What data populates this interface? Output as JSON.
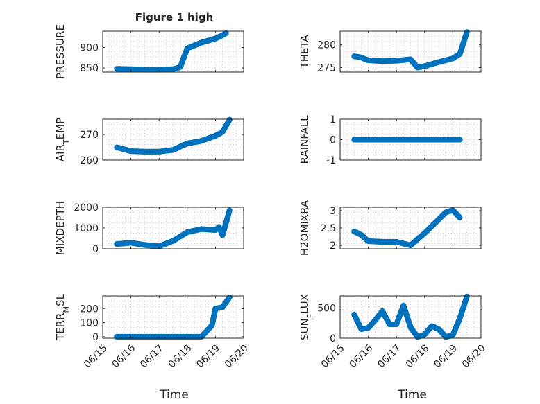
{
  "figure": {
    "title": "Figure 1 high",
    "marker_color": "#0072bd"
  },
  "chart_data": [
    {
      "type": "scatter",
      "ylabel": "PRESSURE",
      "ylim": [
        840,
        940
      ],
      "yticks": [
        850,
        900
      ],
      "xticks": [
        "06/15",
        "06/16",
        "06/17",
        "06/18",
        "06/19",
        "06/20"
      ],
      "xlim": [
        "06/15",
        "06/20"
      ],
      "x_points": [
        "06/15 12:00",
        "06/16 00:00",
        "06/16 12:00",
        "06/17 00:00",
        "06/17 12:00",
        "06/17 18:00",
        "06/18 00:00",
        "06/18 06:00",
        "06/18 12:00",
        "06/18 18:00",
        "06/19 00:00",
        "06/19 06:00",
        "06/19 09:00"
      ],
      "y_points": [
        848,
        847,
        846,
        846,
        847,
        852,
        898,
        905,
        912,
        917,
        922,
        930,
        935
      ],
      "grid": true
    },
    {
      "type": "scatter",
      "ylabel": "THETA",
      "ylim": [
        274,
        283
      ],
      "yticks": [
        275,
        280
      ],
      "xticks": [
        "06/15",
        "06/16",
        "06/17",
        "06/18",
        "06/19",
        "06/20"
      ],
      "xlim": [
        "06/15",
        "06/20"
      ],
      "x_points": [
        "06/15 12:00",
        "06/15 18:00",
        "06/16 00:00",
        "06/16 12:00",
        "06/17 00:00",
        "06/17 12:00",
        "06/17 18:00",
        "06/18 00:00",
        "06/18 12:00",
        "06/19 00:00",
        "06/19 06:00",
        "06/19 12:00"
      ],
      "y_points": [
        277.5,
        277.2,
        276.6,
        276.4,
        276.5,
        276.8,
        275.0,
        275.3,
        276.2,
        277.0,
        278.0,
        282.8
      ],
      "grid": true
    },
    {
      "type": "scatter",
      "ylabel": "AIR_TEMP",
      "ylim": [
        260,
        276
      ],
      "yticks": [
        260,
        270
      ],
      "xticks": [
        "06/15",
        "06/16",
        "06/17",
        "06/18",
        "06/19",
        "06/20"
      ],
      "xlim": [
        "06/15",
        "06/20"
      ],
      "x_points": [
        "06/15 12:00",
        "06/16 00:00",
        "06/16 12:00",
        "06/17 00:00",
        "06/17 12:00",
        "06/18 00:00",
        "06/18 12:00",
        "06/19 00:00",
        "06/19 06:00",
        "06/19 12:00"
      ],
      "y_points": [
        265.0,
        263.5,
        263.3,
        263.3,
        264.0,
        266.5,
        267.5,
        269.5,
        271.0,
        275.8
      ],
      "grid": true
    },
    {
      "type": "scatter",
      "ylabel": "RAINFALL",
      "ylim": [
        -1,
        1
      ],
      "yticks": [
        -1,
        0,
        1
      ],
      "xticks": [
        "06/15",
        "06/16",
        "06/17",
        "06/18",
        "06/19",
        "06/20"
      ],
      "xlim": [
        "06/15",
        "06/20"
      ],
      "x_points": [
        "06/15 12:00",
        "06/16 00:00",
        "06/16 12:00",
        "06/17 00:00",
        "06/17 12:00",
        "06/18 00:00",
        "06/18 12:00",
        "06/19 00:00",
        "06/19 06:00"
      ],
      "y_points": [
        0,
        0,
        0,
        0,
        0,
        0,
        0,
        0,
        0
      ],
      "grid": true
    },
    {
      "type": "scatter",
      "ylabel": "MIXDEPTH",
      "ylim": [
        0,
        2000
      ],
      "yticks": [
        0,
        1000,
        2000
      ],
      "xticks": [
        "06/15",
        "06/16",
        "06/17",
        "06/18",
        "06/19",
        "06/20"
      ],
      "xlim": [
        "06/15",
        "06/20"
      ],
      "x_points": [
        "06/15 12:00",
        "06/16 00:00",
        "06/16 12:00",
        "06/17 00:00",
        "06/17 12:00",
        "06/18 00:00",
        "06/18 12:00",
        "06/19 00:00",
        "06/19 03:00",
        "06/19 06:00",
        "06/19 12:00"
      ],
      "y_points": [
        230,
        290,
        180,
        120,
        380,
        800,
        950,
        900,
        1050,
        650,
        1850
      ],
      "grid": true
    },
    {
      "type": "scatter",
      "ylabel": "H2OMIXRA",
      "ylim": [
        1.9,
        3.1
      ],
      "yticks": [
        2,
        2.5,
        3
      ],
      "xticks": [
        "06/15",
        "06/16",
        "06/17",
        "06/18",
        "06/19",
        "06/20"
      ],
      "xlim": [
        "06/15",
        "06/20"
      ],
      "x_points": [
        "06/15 12:00",
        "06/15 18:00",
        "06/16 00:00",
        "06/16 12:00",
        "06/17 00:00",
        "06/17 12:00",
        "06/18 00:00",
        "06/18 12:00",
        "06/18 18:00",
        "06/19 00:00",
        "06/19 06:00"
      ],
      "y_points": [
        2.4,
        2.3,
        2.12,
        2.1,
        2.1,
        2.0,
        2.35,
        2.75,
        2.95,
        3.02,
        2.8
      ],
      "grid": true
    },
    {
      "type": "scatter",
      "ylabel": "TERR_MSL",
      "ylim": [
        -10,
        290
      ],
      "yticks": [
        0,
        100,
        200
      ],
      "xticks": [
        "06/15",
        "06/16",
        "06/17",
        "06/18",
        "06/19",
        "06/20"
      ],
      "xlim": [
        "06/15",
        "06/20"
      ],
      "x_points": [
        "06/15 12:00",
        "06/16 00:00",
        "06/16 12:00",
        "06/17 00:00",
        "06/17 12:00",
        "06/18 00:00",
        "06/18 12:00",
        "06/18 21:00",
        "06/19 00:00",
        "06/19 06:00",
        "06/19 12:00"
      ],
      "y_points": [
        0,
        0,
        0,
        0,
        0,
        0,
        0,
        80,
        200,
        210,
        280
      ],
      "grid": true
    },
    {
      "type": "scatter",
      "ylabel": "SUN_FLUX",
      "ylim": [
        0,
        700
      ],
      "yticks": [
        0,
        500
      ],
      "xticks": [
        "06/15",
        "06/16",
        "06/17",
        "06/18",
        "06/19",
        "06/20"
      ],
      "xlim": [
        "06/15",
        "06/20"
      ],
      "x_points": [
        "06/15 12:00",
        "06/15 18:00",
        "06/16 00:00",
        "06/16 06:00",
        "06/16 12:00",
        "06/16 18:00",
        "06/17 00:00",
        "06/17 06:00",
        "06/17 12:00",
        "06/17 18:00",
        "06/18 00:00",
        "06/18 06:00",
        "06/18 12:00",
        "06/18 18:00",
        "06/19 00:00",
        "06/19 06:00",
        "06/19 12:00"
      ],
      "y_points": [
        390,
        150,
        170,
        300,
        450,
        230,
        230,
        540,
        180,
        20,
        60,
        200,
        150,
        20,
        50,
        330,
        690
      ],
      "grid": true
    }
  ],
  "xlabels": [
    "Time",
    "Time"
  ]
}
